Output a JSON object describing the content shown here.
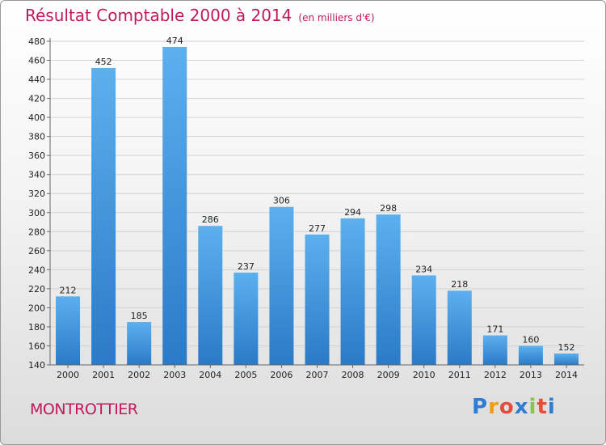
{
  "header": {
    "title": "Résultat Comptable 2000 à 2014",
    "subtitle": "(en milliers d'€)"
  },
  "footer": {
    "location": "MONTROTTIER",
    "logo_letters": [
      {
        "ch": "P",
        "color": "#2e7dd1"
      },
      {
        "ch": "r",
        "color": "#f39c12"
      },
      {
        "ch": "o",
        "color": "#e74c3c"
      },
      {
        "ch": "x",
        "color": "#2e7dd1"
      },
      {
        "ch": "i",
        "color": "#8bc34a"
      },
      {
        "ch": "t",
        "color": "#e74c3c"
      },
      {
        "ch": "i",
        "color": "#2e7dd1"
      }
    ]
  },
  "colors": {
    "bar_top": "#5cb0ee",
    "bar_bottom": "#2a7ac7",
    "title": "#c2185b"
  },
  "chart_data": {
    "type": "bar",
    "title": "Résultat Comptable 2000 à 2014",
    "subtitle": "(en milliers d'€)",
    "xlabel": "",
    "ylabel": "",
    "categories": [
      "2000",
      "2001",
      "2002",
      "2003",
      "2004",
      "2005",
      "2006",
      "2007",
      "2008",
      "2009",
      "2010",
      "2011",
      "2012",
      "2013",
      "2014"
    ],
    "values": [
      212,
      452,
      185,
      474,
      286,
      237,
      306,
      277,
      294,
      298,
      234,
      218,
      171,
      160,
      152
    ],
    "ylim": [
      140,
      480
    ],
    "yticks": [
      140,
      160,
      180,
      200,
      220,
      240,
      260,
      280,
      300,
      320,
      340,
      360,
      380,
      400,
      420,
      440,
      460,
      480
    ],
    "grid": true,
    "legend": "none"
  }
}
